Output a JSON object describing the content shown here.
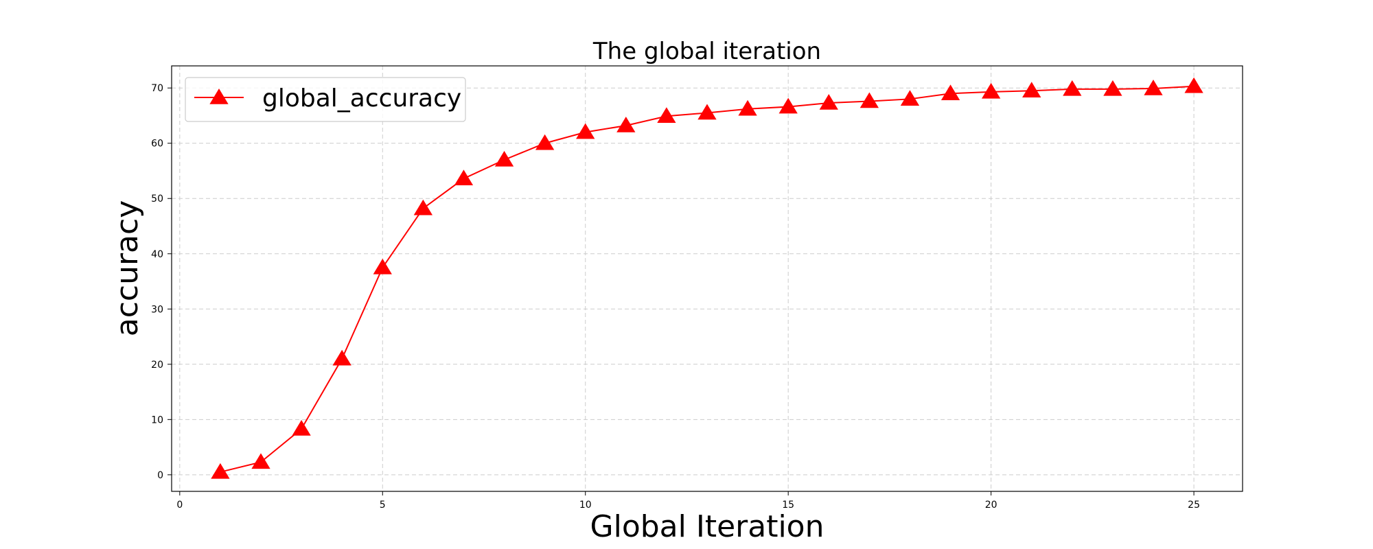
{
  "chart_data": {
    "type": "line",
    "title": "The global iteration",
    "xlabel": "Global Iteration",
    "ylabel": "accuracy",
    "xlim": [
      -0.2,
      26.2
    ],
    "ylim": [
      -3,
      74
    ],
    "xticks": [
      0,
      5,
      10,
      15,
      20,
      25
    ],
    "yticks": [
      0,
      10,
      20,
      30,
      40,
      50,
      60,
      70
    ],
    "grid": true,
    "legend_position": "top-left",
    "series": [
      {
        "name": "global_accuracy",
        "color": "#ff0000",
        "marker": "triangle-up",
        "x": [
          1,
          2,
          3,
          4,
          5,
          6,
          7,
          8,
          9,
          10,
          11,
          12,
          13,
          14,
          15,
          16,
          17,
          18,
          19,
          20,
          21,
          22,
          23,
          24,
          25
        ],
        "y": [
          0.5,
          2.3,
          8.3,
          21.0,
          37.5,
          48.2,
          53.6,
          57.0,
          60.0,
          62.0,
          63.2,
          64.9,
          65.5,
          66.2,
          66.6,
          67.3,
          67.6,
          68.0,
          69.0,
          69.3,
          69.5,
          69.8,
          69.8,
          69.9,
          70.3
        ]
      }
    ]
  }
}
